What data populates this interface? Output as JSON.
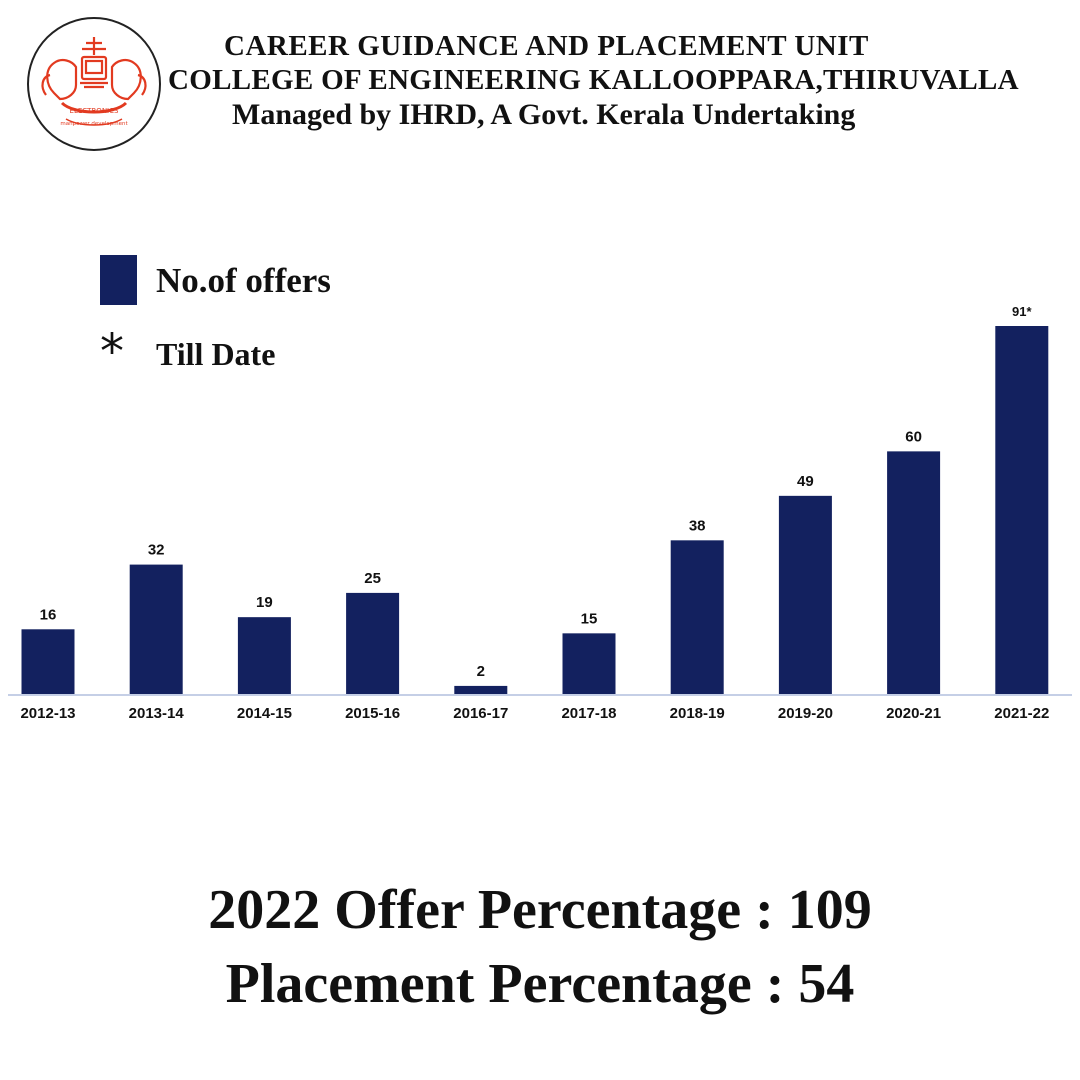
{
  "header": {
    "unit": "CAREER GUIDANCE AND PLACEMENT UNIT",
    "college": "COLLEGE OF ENGINEERING KALLOOPPARA,THIRUVALLA",
    "managed_by": "Managed by IHRD, A Govt. Kerala Undertaking"
  },
  "logo": {
    "icon": "ihrd-electronics-elephant-emblem",
    "text_top": "ELECTRONICS",
    "text_bottom": "manpower development",
    "color": "#e23a20"
  },
  "legend": {
    "series_label": "No.of offers",
    "star_symbol": "*",
    "star_label": "Till Date"
  },
  "colors": {
    "bar": "#13215f",
    "baseline": "#c5cfe6",
    "text": "#111111"
  },
  "chart_data": {
    "type": "bar",
    "categories": [
      "2012-13",
      "2013-14",
      "2014-15",
      "2015-16",
      "2016-17",
      "2017-18",
      "2018-19",
      "2019-20",
      "2020-21",
      "2021-22"
    ],
    "series": [
      {
        "name": "No.of offers",
        "values": [
          16,
          32,
          19,
          25,
          2,
          15,
          38,
          49,
          60,
          91
        ]
      }
    ],
    "data_labels": [
      "16",
      "32",
      "19",
      "25",
      "2",
      "15",
      "38",
      "49",
      "60",
      "91*"
    ],
    "ylim": [
      0,
      91
    ],
    "grid": false,
    "legend_position": "top-left"
  },
  "summary": {
    "offer_percentage": "2022 Offer Percentage : 109",
    "placement_percentage": "Placement Percentage : 54"
  }
}
